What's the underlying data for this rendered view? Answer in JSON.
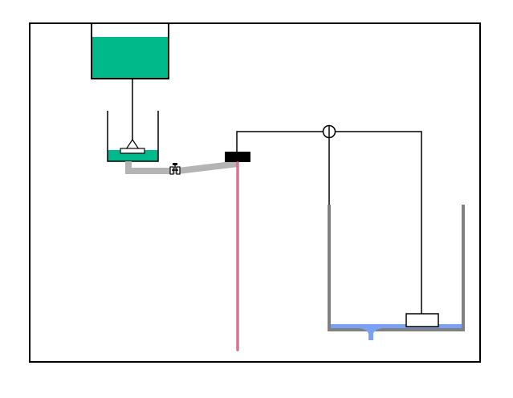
{
  "diagram": {
    "colors": {
      "background": "#ffffff",
      "frame": "#000000",
      "liquid_green": "#00b98a",
      "pipe_gray": "#b4b4b4",
      "tank_gray": "#808080",
      "pink_wire": "#d97096",
      "water_blue": "#7ba2f2",
      "block": "#000000"
    },
    "components": [
      "top-reservoir",
      "float-chamber",
      "float-valve",
      "connecting-pipe",
      "pipe-valve",
      "black-junction-block",
      "pink-vertical-tube",
      "pulley-wheel",
      "string-line",
      "right-tank",
      "water-layer",
      "drain-outlet",
      "float-block"
    ]
  }
}
